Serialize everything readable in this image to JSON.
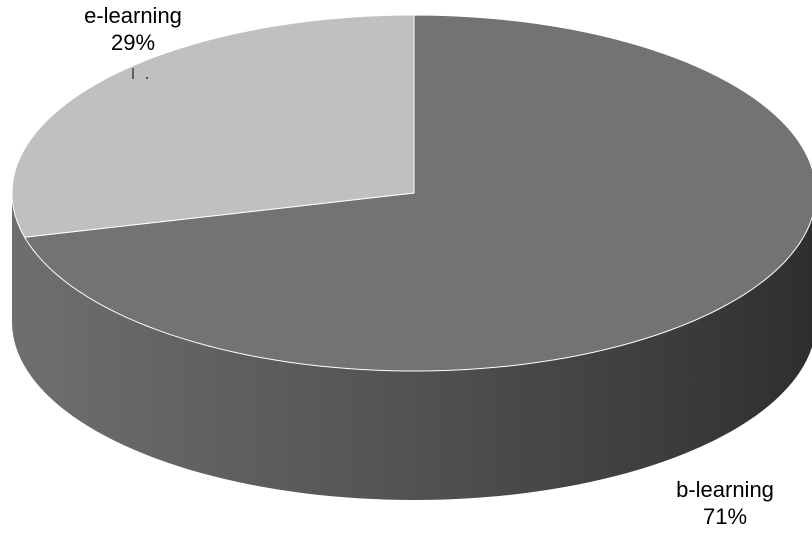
{
  "chart_data": {
    "type": "pie",
    "style": "3d",
    "slices": [
      {
        "label": "e-learning",
        "value": 29,
        "value_label": "29%",
        "color": "#c0c0c0"
      },
      {
        "label": "b-learning",
        "value": 71,
        "value_label": "71%",
        "color": "#737373"
      }
    ],
    "legend": "none"
  }
}
